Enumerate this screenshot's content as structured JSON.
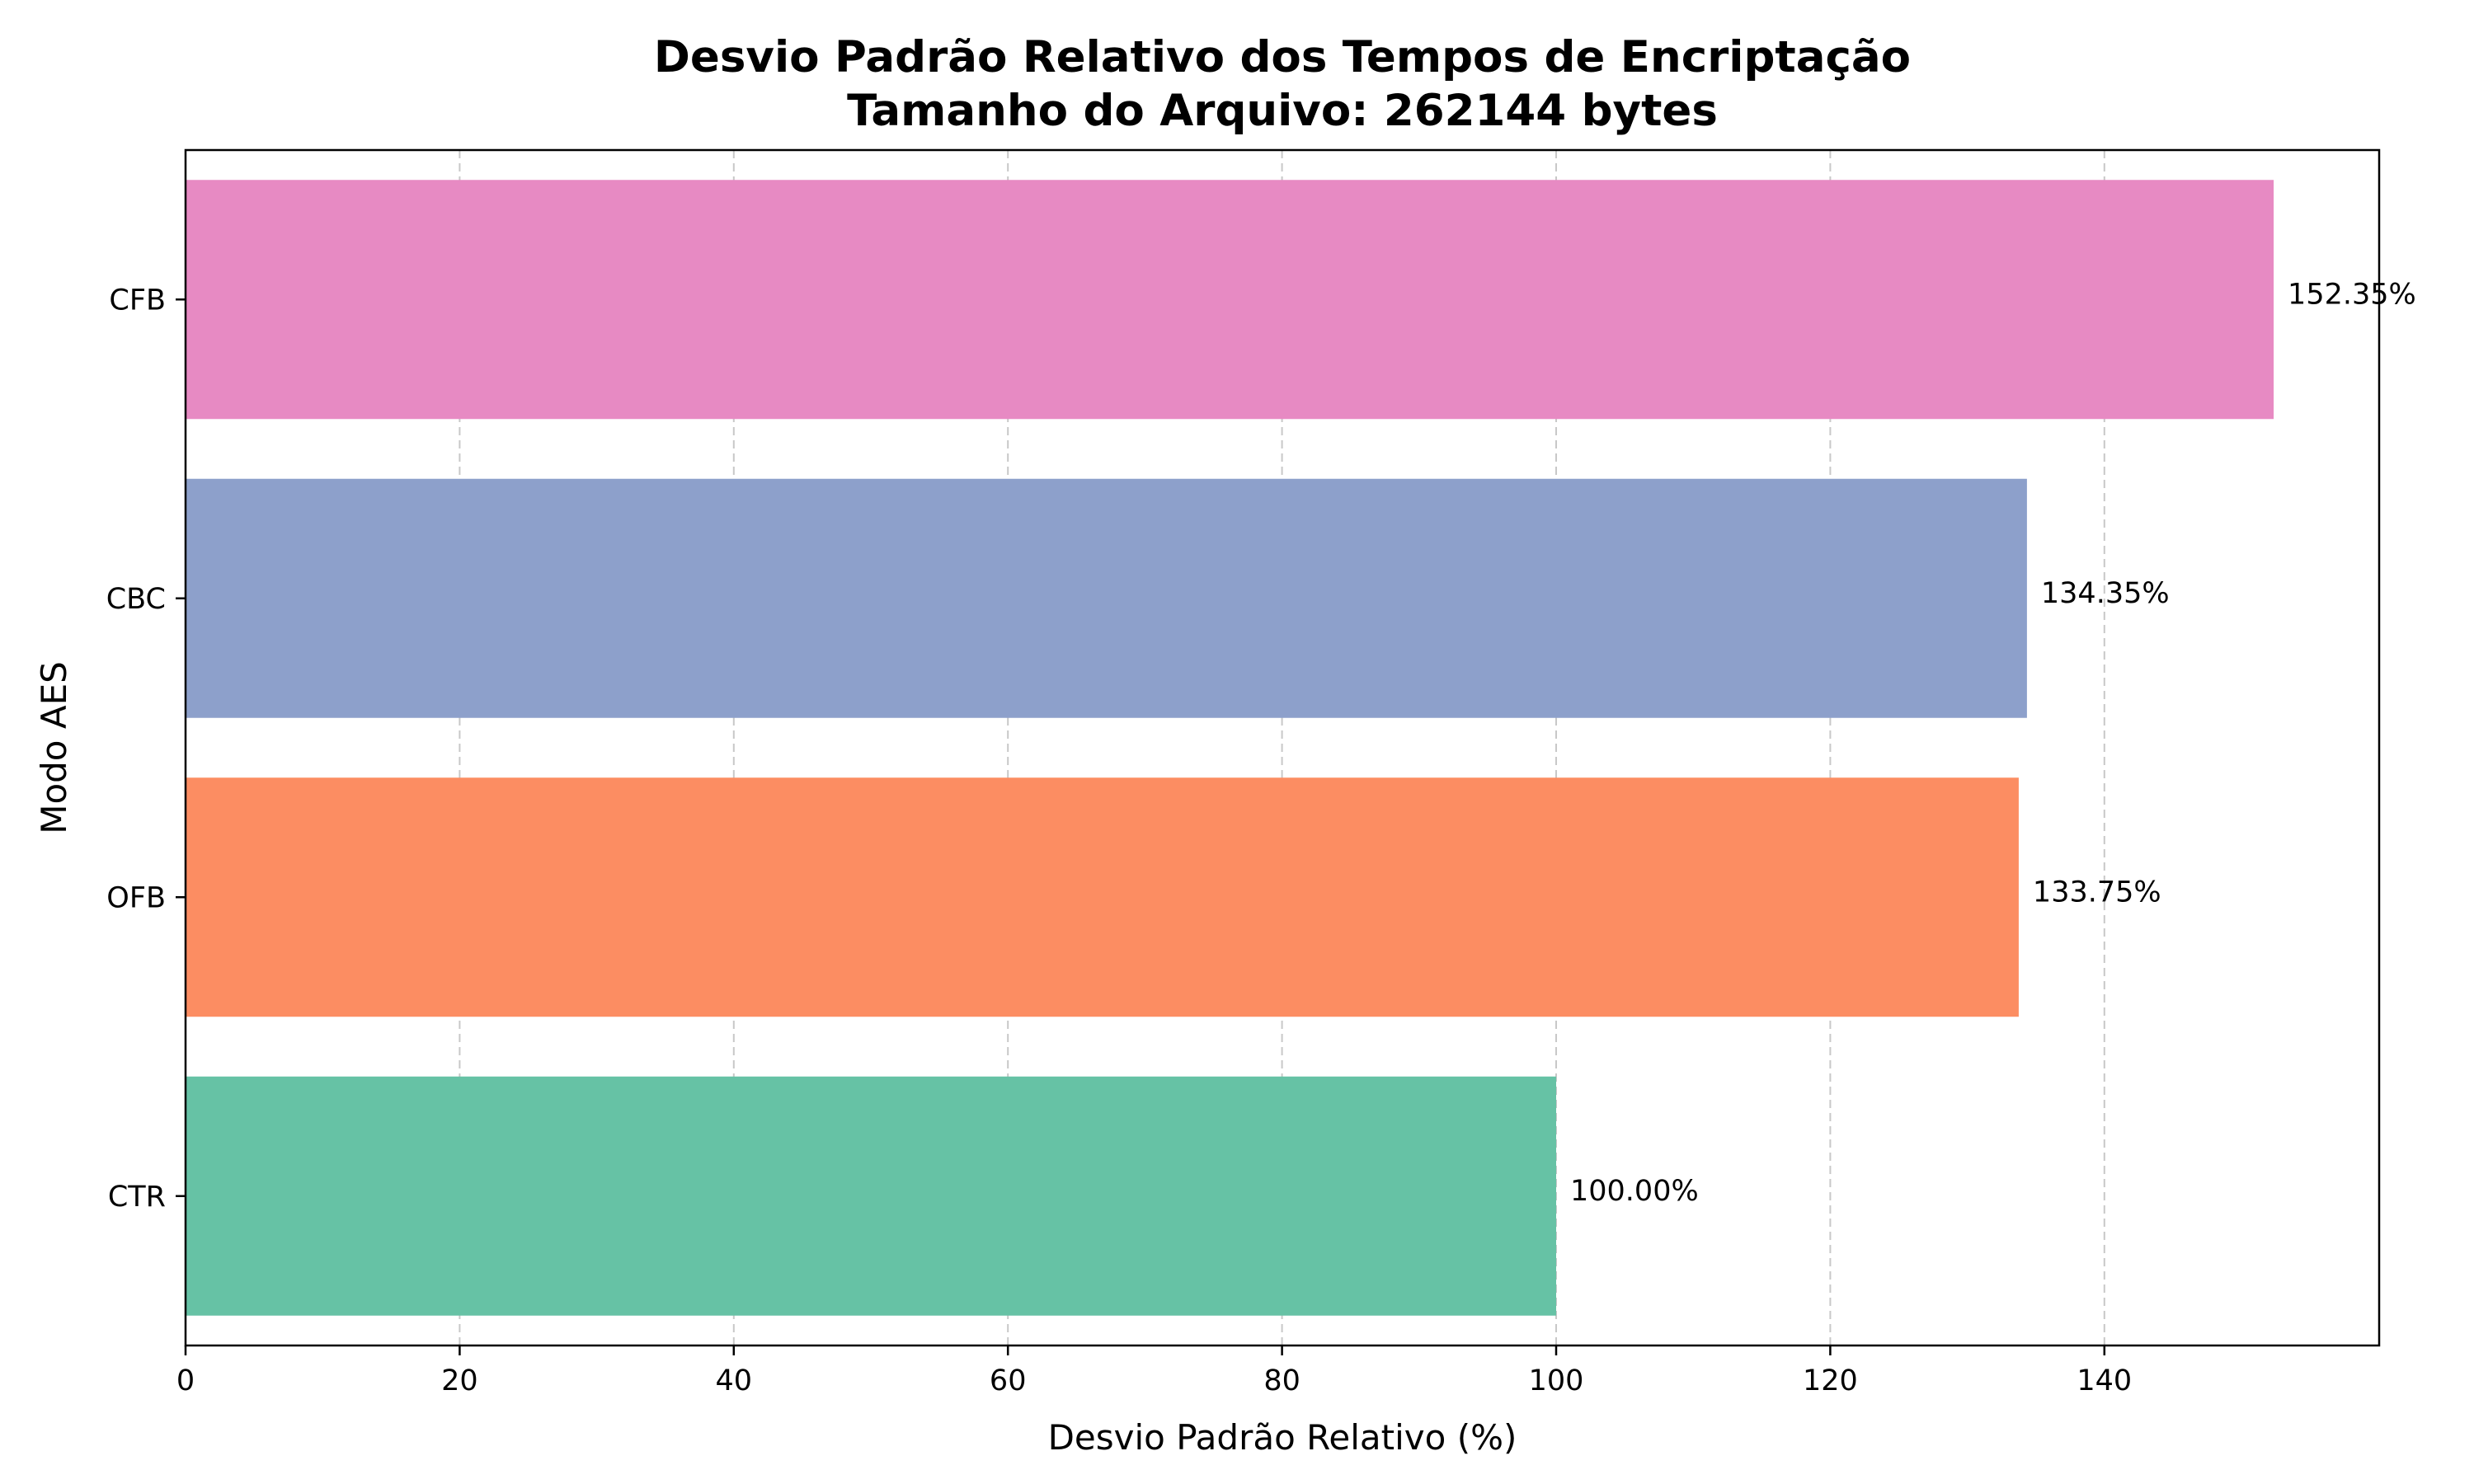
{
  "chart_data": {
    "type": "bar",
    "orientation": "horizontal",
    "title": "Desvio Padrão Relativo dos Tempos de Encriptação",
    "subtitle": "Tamanho do Arquivo: 262144 bytes",
    "xlabel": "Desvio Padrão Relativo (%)",
    "ylabel": "Modo AES",
    "categories": [
      "CTR",
      "OFB",
      "CBC",
      "CFB"
    ],
    "values": [
      100.0,
      133.75,
      134.35,
      152.35
    ],
    "value_labels": [
      "100.00%",
      "133.75%",
      "134.35%",
      "152.35%"
    ],
    "colors": [
      "#66c2a5",
      "#fc8d62",
      "#8da0cb",
      "#e78ac3"
    ],
    "xlim": [
      0,
      160
    ],
    "xticks": [
      0,
      20,
      40,
      60,
      80,
      100,
      120,
      140
    ],
    "grid": "x-dashed",
    "legend": "none"
  }
}
